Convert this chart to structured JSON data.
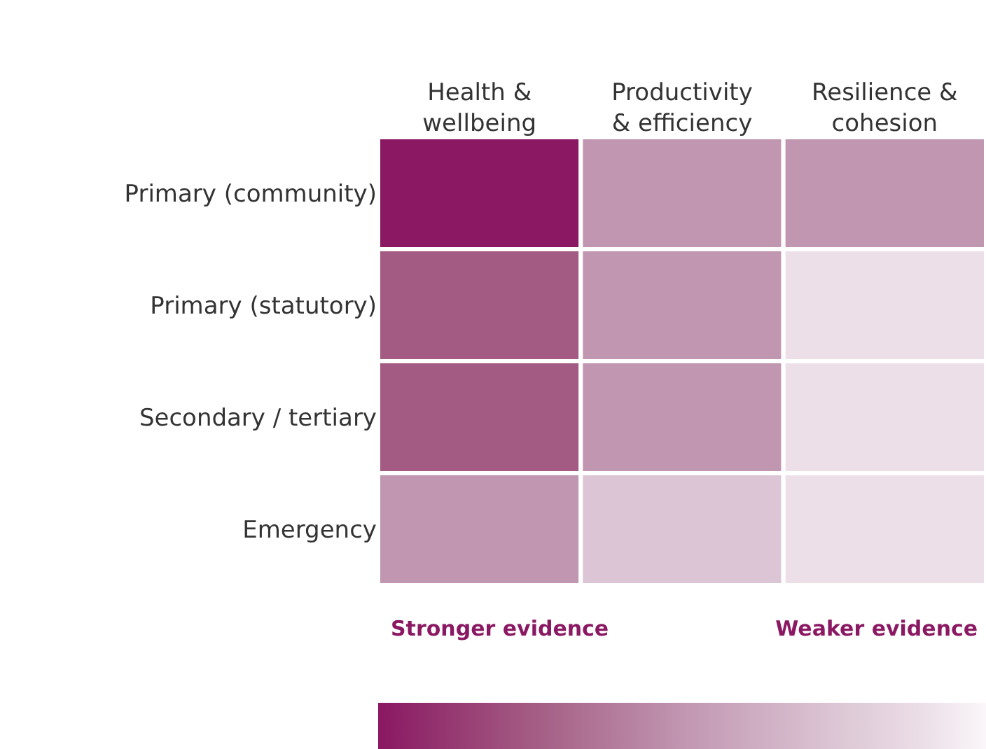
{
  "chart_data": {
    "type": "heatmap",
    "categories": [
      "Health &\nwellbeing",
      "Productivity\n& efficiency",
      "Resilience &\ncohesion"
    ],
    "y_categories": [
      "Primary (community)",
      "Primary (statutory)",
      "Secondary / tertiary",
      "Emergency"
    ],
    "cells": [
      [
        1,
        0.5,
        0.5
      ],
      [
        0.75,
        0.5,
        0.1
      ],
      [
        0.75,
        0.5,
        0.1
      ],
      [
        0.5,
        0.25,
        0.1
      ]
    ],
    "clim": [
      1,
      0
    ],
    "cticks": [
      {
        "value": 0.8,
        "label": "Stronger evidence"
      },
      {
        "value": 0.18,
        "label": "Weaker evidence"
      }
    ]
  }
}
